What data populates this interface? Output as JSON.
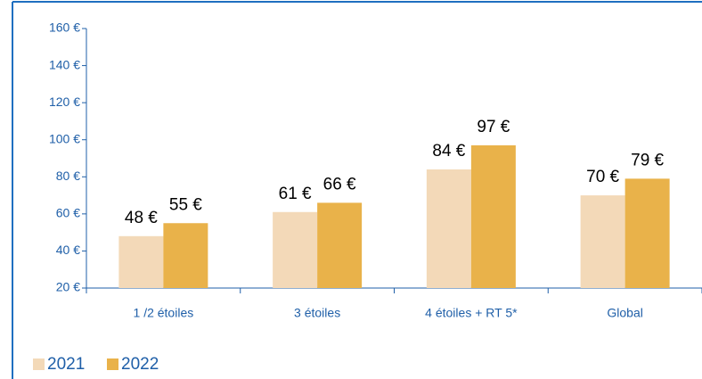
{
  "chart_data": {
    "type": "bar",
    "categories": [
      "1 /2 étoiles",
      "3 étoiles",
      "4 étoiles + RT 5*",
      "Global"
    ],
    "series": [
      {
        "name": "2021",
        "color": "#f3d9b8",
        "values": [
          48,
          61,
          84,
          70
        ],
        "value_labels": [
          "48 €",
          "61 €",
          "84 €",
          "70 €"
        ]
      },
      {
        "name": "2022",
        "color": "#e9b24a",
        "values": [
          55,
          66,
          97,
          79
        ],
        "value_labels": [
          "55 €",
          "66 €",
          "97 €",
          "79 €"
        ]
      }
    ],
    "ylim": [
      20,
      160
    ],
    "yticks": [
      {
        "value": 20,
        "label": "20 €"
      },
      {
        "value": 40,
        "label": "40 €"
      },
      {
        "value": 60,
        "label": "60 €"
      },
      {
        "value": 80,
        "label": "80 €"
      },
      {
        "value": 100,
        "label": "100 €"
      },
      {
        "value": 120,
        "label": "120 €"
      },
      {
        "value": 140,
        "label": "140 €"
      },
      {
        "value": 160,
        "label": "160 €"
      }
    ],
    "grid": false,
    "legend": "bottom-left"
  }
}
